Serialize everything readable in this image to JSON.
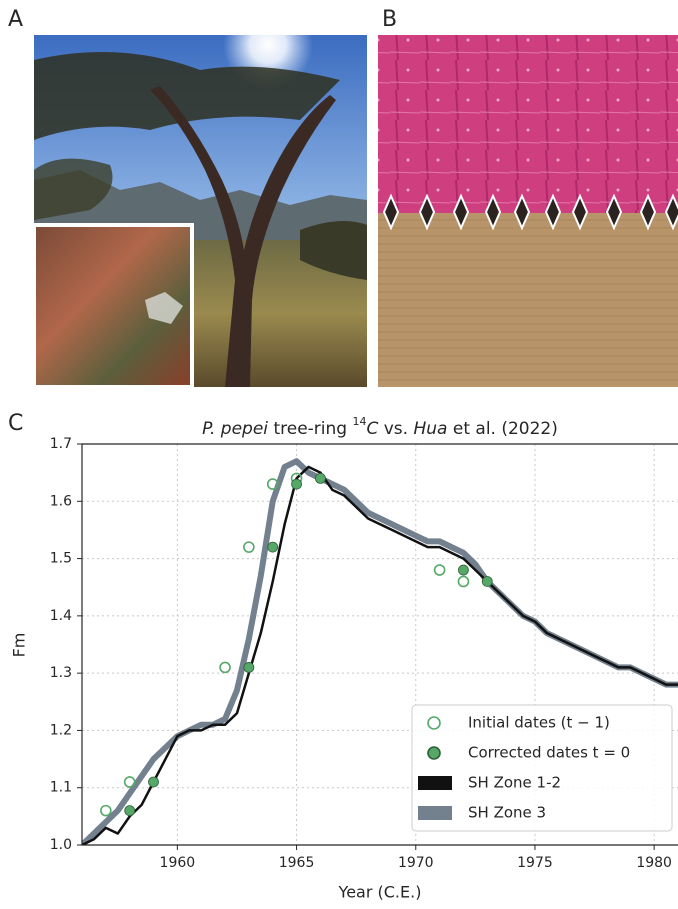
{
  "panels": {
    "a": {
      "label": "A"
    },
    "b": {
      "label": "B"
    },
    "c": {
      "label": "C"
    }
  },
  "chart_data": {
    "type": "line",
    "title_parts": [
      "P. pepei",
      " tree-ring ",
      "14",
      "C",
      " vs. ",
      "Hua",
      " et al. (2022)"
    ],
    "xlabel": "Year (C.E.)",
    "ylabel": "Fm",
    "xlim": [
      1956,
      1981
    ],
    "ylim": [
      1.0,
      1.7
    ],
    "xticks": [
      1960,
      1965,
      1970,
      1975,
      1980
    ],
    "yticks": [
      {
        "value": 1.0,
        "label": "1.0"
      },
      1.1,
      1.2,
      1.3,
      1.4,
      1.5,
      1.6,
      1.7
    ],
    "grid": true,
    "legend": "lower right",
    "series": [
      {
        "name": "Initial dates (t − 1)",
        "type": "scatter",
        "marker": "open",
        "color": "#55a868",
        "x": [
          1957,
          1958,
          1962,
          1963,
          1964,
          1965,
          1971,
          1972
        ],
        "values": [
          1.06,
          1.11,
          1.31,
          1.52,
          1.63,
          1.64,
          1.48,
          1.46
        ]
      },
      {
        "name": "Corrected dates t = 0",
        "type": "scatter",
        "marker": "filled",
        "color": "#55a868",
        "x": [
          1958,
          1959,
          1963,
          1964,
          1965,
          1966,
          1972,
          1973
        ],
        "values": [
          1.06,
          1.11,
          1.31,
          1.52,
          1.63,
          1.64,
          1.48,
          1.46
        ]
      },
      {
        "name": "SH Zone 1-2",
        "type": "line",
        "color": "#111111",
        "width": 2.5,
        "x": [
          1956,
          1956.5,
          1957,
          1957.5,
          1958,
          1958.5,
          1959,
          1959.5,
          1960,
          1960.5,
          1961,
          1961.5,
          1962,
          1962.5,
          1963,
          1963.5,
          1964,
          1964.5,
          1965,
          1965.5,
          1966,
          1966.5,
          1967,
          1967.5,
          1968,
          1968.5,
          1969,
          1969.5,
          1970,
          1970.5,
          1971,
          1971.5,
          1972,
          1972.5,
          1973,
          1973.5,
          1974,
          1974.5,
          1975,
          1975.5,
          1976,
          1976.5,
          1977,
          1977.5,
          1978,
          1978.5,
          1979,
          1979.5,
          1980,
          1980.5,
          1981
        ],
        "values": [
          1.0,
          1.01,
          1.03,
          1.02,
          1.05,
          1.07,
          1.11,
          1.15,
          1.19,
          1.2,
          1.2,
          1.21,
          1.21,
          1.23,
          1.3,
          1.37,
          1.46,
          1.56,
          1.64,
          1.66,
          1.65,
          1.62,
          1.61,
          1.59,
          1.57,
          1.56,
          1.55,
          1.54,
          1.53,
          1.52,
          1.52,
          1.51,
          1.5,
          1.48,
          1.46,
          1.44,
          1.42,
          1.4,
          1.39,
          1.37,
          1.36,
          1.35,
          1.34,
          1.33,
          1.32,
          1.31,
          1.31,
          1.3,
          1.29,
          1.28,
          1.28
        ]
      },
      {
        "name": "SH Zone 3",
        "type": "line",
        "color": "#73818f",
        "width": 6,
        "x": [
          1956,
          1956.5,
          1957,
          1957.5,
          1958,
          1958.5,
          1959,
          1959.5,
          1960,
          1960.5,
          1961,
          1961.5,
          1962,
          1962.5,
          1963,
          1963.5,
          1964,
          1964.5,
          1965,
          1965.5,
          1966,
          1966.5,
          1967,
          1967.5,
          1968,
          1968.5,
          1969,
          1969.5,
          1970,
          1970.5,
          1971,
          1971.5,
          1972,
          1972.5,
          1973,
          1973.5,
          1974,
          1974.5,
          1975,
          1975.5,
          1976,
          1976.5,
          1977,
          1977.5,
          1978,
          1978.5,
          1979,
          1979.5,
          1980,
          1980.5,
          1981
        ],
        "values": [
          1.0,
          1.02,
          1.04,
          1.06,
          1.09,
          1.12,
          1.15,
          1.17,
          1.19,
          1.2,
          1.21,
          1.21,
          1.22,
          1.27,
          1.36,
          1.47,
          1.6,
          1.66,
          1.67,
          1.65,
          1.64,
          1.63,
          1.62,
          1.6,
          1.58,
          1.57,
          1.56,
          1.55,
          1.54,
          1.53,
          1.53,
          1.52,
          1.51,
          1.49,
          1.46,
          1.44,
          1.42,
          1.4,
          1.39,
          1.37,
          1.36,
          1.35,
          1.34,
          1.33,
          1.32,
          1.31,
          1.31,
          1.3,
          1.29,
          1.28,
          1.28
        ]
      }
    ]
  }
}
